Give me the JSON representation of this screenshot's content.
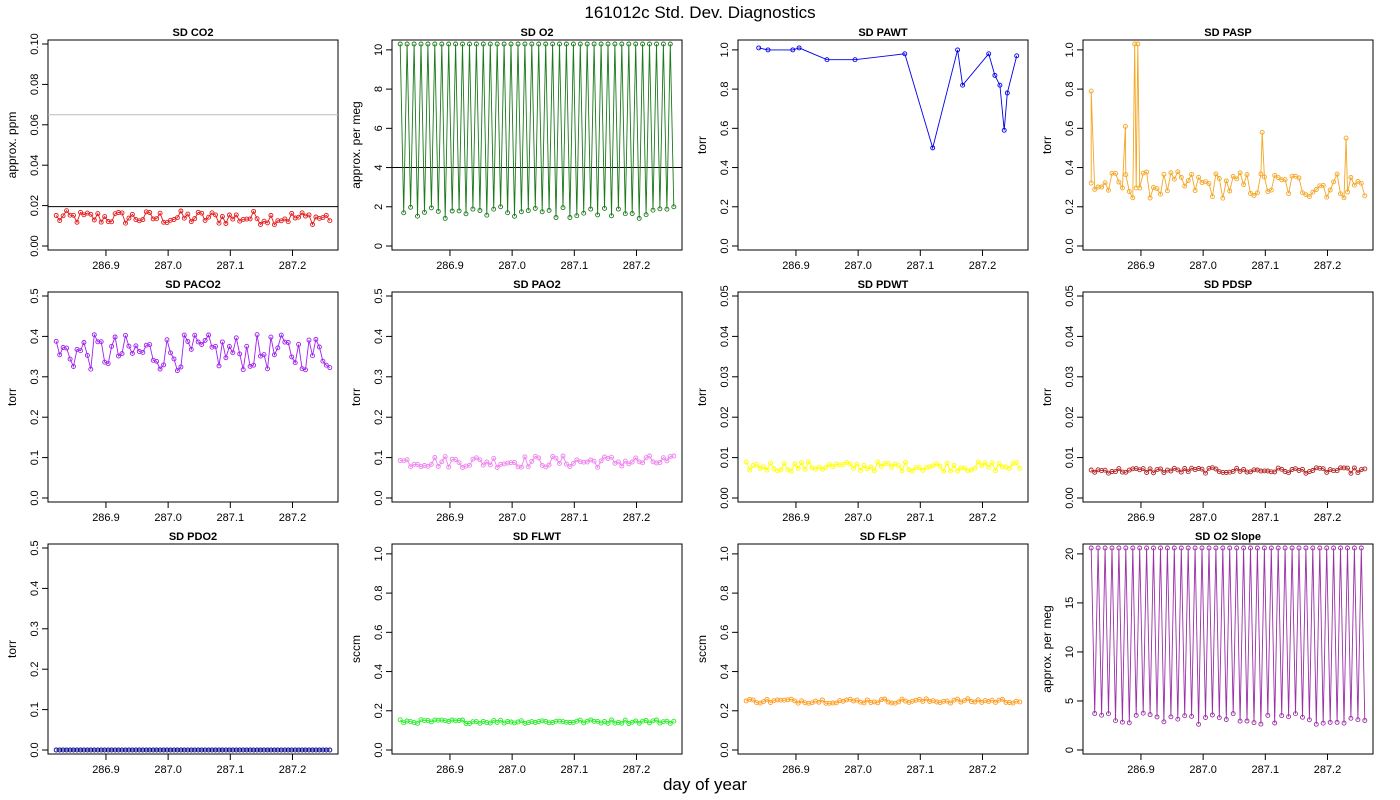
{
  "figure": {
    "title": "161012c   Std. Dev. Diagnostics",
    "xlabel": "day of year"
  },
  "chart_data": [
    {
      "type": "scatter",
      "title": "SD CO2",
      "ylabel": "approx. ppm",
      "xlim": [
        286.81,
        287.27
      ],
      "ylim": [
        0,
        0.1
      ],
      "yticks": [
        0,
        0.02,
        0.04,
        0.06,
        0.08,
        0.1
      ],
      "ytick_labels": [
        "0.00",
        "0.02",
        "0.04",
        "0.06",
        "0.08",
        "0.10"
      ],
      "xticks": [
        286.9,
        287.0,
        287.1,
        287.2
      ],
      "xtick_labels": [
        "286.9",
        "287.0",
        "287.1",
        "287.2"
      ],
      "color": "#e41a1c",
      "hlines": [
        {
          "y": 0.065,
          "color": "#bbbbbb"
        },
        {
          "y": 0.0195,
          "color": "#000000"
        }
      ],
      "series": [
        {
          "base": 0.014,
          "amp": 0.0035,
          "hi_every": 0,
          "hi_value": 0
        }
      ]
    },
    {
      "type": "scatter",
      "title": "SD O2",
      "ylabel": "approx. per meg",
      "xlim": [
        286.81,
        287.27
      ],
      "ylim": [
        0,
        10.3
      ],
      "yticks": [
        0,
        2,
        4,
        6,
        8,
        10
      ],
      "ytick_labels": [
        "0",
        "2",
        "4",
        "6",
        "8",
        "10"
      ],
      "xticks": [
        286.9,
        287.0,
        287.1,
        287.2
      ],
      "xtick_labels": [
        "286.9",
        "287.0",
        "287.1",
        "287.2"
      ],
      "color": "#1b7a1b",
      "hlines": [
        {
          "y": 4,
          "color": "#000000"
        }
      ],
      "series": [
        {
          "base": 1.7,
          "amp": 0.3,
          "hi_every": 2,
          "hi_value": 10.3
        }
      ]
    },
    {
      "type": "scatter",
      "title": "SD PAWT",
      "ylabel": "torr",
      "xlim": [
        286.81,
        287.27
      ],
      "ylim": [
        0,
        1.03
      ],
      "yticks": [
        0,
        0.2,
        0.4,
        0.6,
        0.8,
        1.0
      ],
      "ytick_labels": [
        "0.0",
        "0.2",
        "0.4",
        "0.6",
        "0.8",
        "1.0"
      ],
      "xticks": [
        286.9,
        287.0,
        287.1,
        287.2
      ],
      "xtick_labels": [
        "286.9",
        "287.0",
        "287.1",
        "287.2"
      ],
      "color": "#0000ee",
      "hlines": [],
      "series": [
        {
          "base": 1.2,
          "amp": 0.1,
          "hi_every": 0,
          "hi_value": 0
        }
      ],
      "points": [
        [
          286.84,
          1.01
        ],
        [
          286.855,
          1.0
        ],
        [
          286.895,
          1.0
        ],
        [
          286.905,
          1.01
        ],
        [
          286.95,
          0.95
        ],
        [
          286.995,
          0.95
        ],
        [
          287.075,
          0.98
        ],
        [
          287.12,
          0.5
        ],
        [
          287.16,
          1.0
        ],
        [
          287.168,
          0.82
        ],
        [
          287.21,
          0.98
        ],
        [
          287.22,
          0.87
        ],
        [
          287.228,
          0.82
        ],
        [
          287.235,
          0.59
        ],
        [
          287.24,
          0.78
        ],
        [
          287.255,
          0.97
        ]
      ]
    },
    {
      "type": "scatter",
      "title": "SD PASP",
      "ylabel": "torr",
      "xlim": [
        286.81,
        287.27
      ],
      "ylim": [
        0,
        1.03
      ],
      "yticks": [
        0,
        0.2,
        0.4,
        0.6,
        0.8,
        1.0
      ],
      "ytick_labels": [
        "0.0",
        "0.2",
        "0.4",
        "0.6",
        "0.8",
        "1.0"
      ],
      "xticks": [
        286.9,
        287.0,
        287.1,
        287.2
      ],
      "xtick_labels": [
        "286.9",
        "287.0",
        "287.1",
        "287.2"
      ],
      "color": "#f5a623",
      "hlines": [],
      "series": [
        {
          "base": 0.31,
          "amp": 0.07,
          "hi_every": 0,
          "hi_value": 0
        }
      ],
      "points": [
        [
          286.82,
          0.79
        ],
        [
          286.875,
          0.61
        ],
        [
          286.89,
          1.03
        ],
        [
          286.895,
          1.03
        ],
        [
          287.095,
          0.58
        ],
        [
          287.23,
          0.55
        ]
      ]
    },
    {
      "type": "scatter",
      "title": "SD PACO2",
      "ylabel": "torr",
      "xlim": [
        286.81,
        287.27
      ],
      "ylim": [
        0,
        0.5
      ],
      "yticks": [
        0,
        0.1,
        0.2,
        0.3,
        0.4,
        0.5
      ],
      "ytick_labels": [
        "0.0",
        "0.1",
        "0.2",
        "0.3",
        "0.4",
        "0.5"
      ],
      "xticks": [
        286.9,
        287.0,
        287.1,
        287.2
      ],
      "xtick_labels": [
        "286.9",
        "287.0",
        "287.1",
        "287.2"
      ],
      "color": "#a020f0",
      "hlines": [],
      "series": [
        {
          "base": 0.36,
          "amp": 0.045,
          "hi_every": 0,
          "hi_value": 0
        }
      ]
    },
    {
      "type": "scatter",
      "title": "SD PAO2",
      "ylabel": "torr",
      "xlim": [
        286.81,
        287.27
      ],
      "ylim": [
        0,
        0.5
      ],
      "yticks": [
        0,
        0.1,
        0.2,
        0.3,
        0.4,
        0.5
      ],
      "ytick_labels": [
        "0.0",
        "0.1",
        "0.2",
        "0.3",
        "0.4",
        "0.5"
      ],
      "xticks": [
        286.9,
        287.0,
        287.1,
        287.2
      ],
      "xtick_labels": [
        "286.9",
        "287.0",
        "287.1",
        "287.2"
      ],
      "color": "#ee82ee",
      "hlines": [],
      "series": [
        {
          "base": 0.09,
          "amp": 0.015,
          "hi_every": 0,
          "hi_value": 0
        }
      ]
    },
    {
      "type": "scatter",
      "title": "SD PDWT",
      "ylabel": "torr",
      "xlim": [
        286.81,
        287.27
      ],
      "ylim": [
        0,
        0.05
      ],
      "yticks": [
        0,
        0.01,
        0.02,
        0.03,
        0.04,
        0.05
      ],
      "ytick_labels": [
        "0.00",
        "0.01",
        "0.02",
        "0.03",
        "0.04",
        "0.05"
      ],
      "xticks": [
        286.9,
        287.0,
        287.1,
        287.2
      ],
      "xtick_labels": [
        "286.9",
        "287.0",
        "287.1",
        "287.2"
      ],
      "color": "#ffff00",
      "hlines": [],
      "series": [
        {
          "base": 0.0078,
          "amp": 0.0012,
          "hi_every": 0,
          "hi_value": 0
        }
      ]
    },
    {
      "type": "scatter",
      "title": "SD PDSP",
      "ylabel": "torr",
      "xlim": [
        286.81,
        287.27
      ],
      "ylim": [
        0,
        0.05
      ],
      "yticks": [
        0,
        0.01,
        0.02,
        0.03,
        0.04,
        0.05
      ],
      "ytick_labels": [
        "0.00",
        "0.01",
        "0.02",
        "0.03",
        "0.04",
        "0.05"
      ],
      "xticks": [
        286.9,
        287.0,
        287.1,
        287.2
      ],
      "xtick_labels": [
        "286.9",
        "287.0",
        "287.1",
        "287.2"
      ],
      "color": "#b22222",
      "hlines": [],
      "series": [
        {
          "base": 0.0068,
          "amp": 0.0007,
          "hi_every": 0,
          "hi_value": 0
        }
      ]
    },
    {
      "type": "scatter",
      "title": "SD PDO2",
      "ylabel": "torr",
      "xlim": [
        286.81,
        287.27
      ],
      "ylim": [
        0,
        0.5
      ],
      "yticks": [
        0,
        0.1,
        0.2,
        0.3,
        0.4,
        0.5
      ],
      "ytick_labels": [
        "0.0",
        "0.1",
        "0.2",
        "0.3",
        "0.4",
        "0.5"
      ],
      "xticks": [
        286.9,
        287.0,
        287.1,
        287.2
      ],
      "xtick_labels": [
        "286.9",
        "287.0",
        "287.1",
        "287.2"
      ],
      "color": "#00008b",
      "hlines": [],
      "series": [
        {
          "base": 0.0,
          "amp": 0.0,
          "hi_every": 0,
          "hi_value": 0
        }
      ]
    },
    {
      "type": "scatter",
      "title": "SD FLWT",
      "ylabel": "sccm",
      "xlim": [
        286.81,
        287.27
      ],
      "ylim": [
        0,
        1.03
      ],
      "yticks": [
        0,
        0.2,
        0.4,
        0.6,
        0.8,
        1.0
      ],
      "ytick_labels": [
        "0.0",
        "0.2",
        "0.4",
        "0.6",
        "0.8",
        "1.0"
      ],
      "xticks": [
        286.9,
        287.0,
        287.1,
        287.2
      ],
      "xtick_labels": [
        "286.9",
        "287.0",
        "287.1",
        "287.2"
      ],
      "color": "#22ee22",
      "hlines": [],
      "series": [
        {
          "base": 0.145,
          "amp": 0.01,
          "hi_every": 0,
          "hi_value": 0
        }
      ]
    },
    {
      "type": "scatter",
      "title": "SD FLSP",
      "ylabel": "sccm",
      "xlim": [
        286.81,
        287.27
      ],
      "ylim": [
        0,
        1.03
      ],
      "yticks": [
        0,
        0.2,
        0.4,
        0.6,
        0.8,
        1.0
      ],
      "ytick_labels": [
        "0.0",
        "0.2",
        "0.4",
        "0.6",
        "0.8",
        "1.0"
      ],
      "xticks": [
        286.9,
        287.0,
        287.1,
        287.2
      ],
      "xtick_labels": [
        "286.9",
        "287.0",
        "287.1",
        "287.2"
      ],
      "color": "#ff9a1a",
      "hlines": [],
      "series": [
        {
          "base": 0.25,
          "amp": 0.012,
          "hi_every": 0,
          "hi_value": 0
        }
      ]
    },
    {
      "type": "scatter",
      "title": "SD O2 Slope",
      "ylabel": "approx. per meg",
      "xlim": [
        286.81,
        287.27
      ],
      "ylim": [
        0,
        20.6
      ],
      "yticks": [
        0,
        5,
        10,
        15,
        20
      ],
      "ytick_labels": [
        "0",
        "5",
        "10",
        "15",
        "20"
      ],
      "xticks": [
        286.9,
        287.0,
        287.1,
        287.2
      ],
      "xtick_labels": [
        "286.9",
        "287.0",
        "287.1",
        "287.2"
      ],
      "color": "#9b30a8",
      "hlines": [],
      "series": [
        {
          "base": 3.2,
          "amp": 0.6,
          "hi_every": 2,
          "hi_value": 20.6
        }
      ]
    }
  ]
}
